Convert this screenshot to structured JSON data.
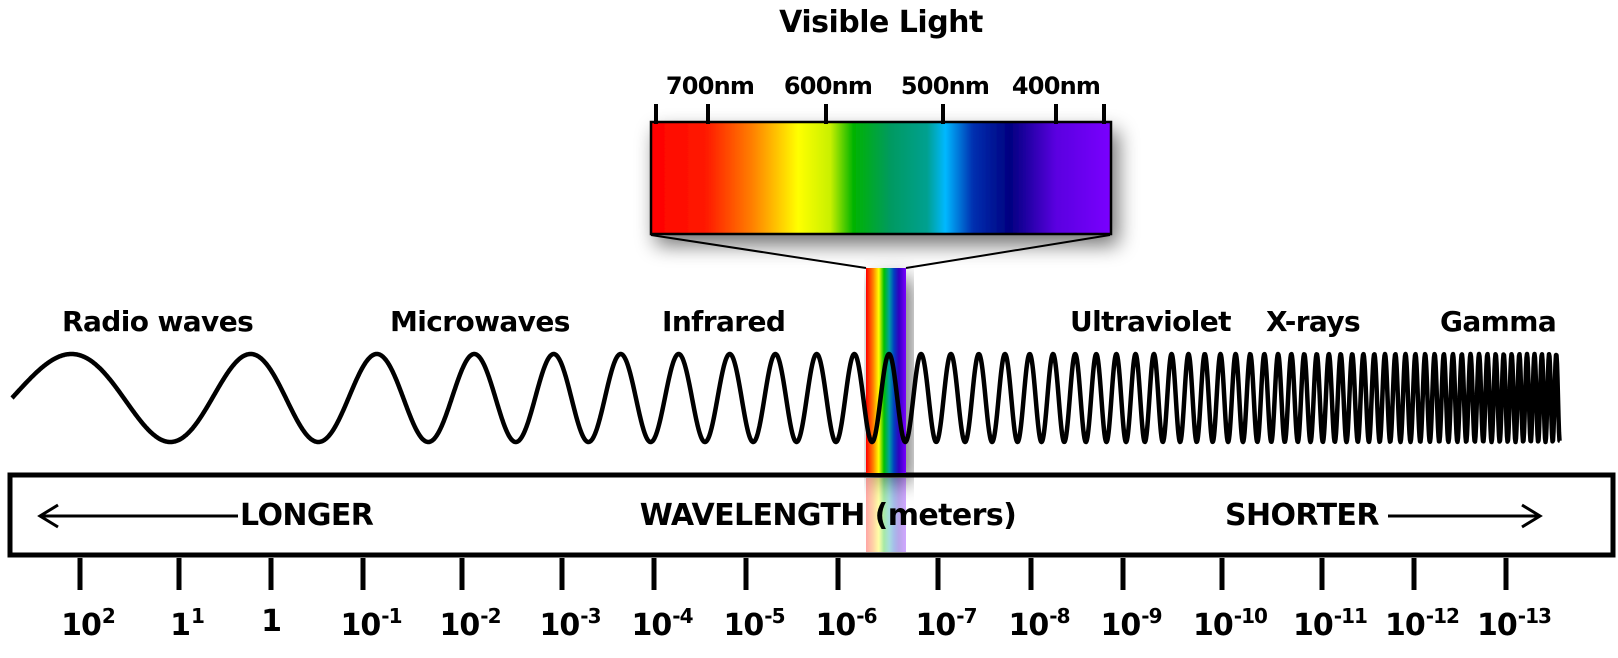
{
  "title": "Visible Light",
  "visible_ticks": [
    "700nm",
    "600nm",
    "500nm",
    "400nm"
  ],
  "bands": [
    "Radio waves",
    "Microwaves",
    "Infrared",
    "Ultraviolet",
    "X-rays",
    "Gamma"
  ],
  "scale": {
    "longer": "LONGER",
    "axis": "WAVELENGTH (meters)",
    "shorter": "SHORTER"
  },
  "wavelength_ticks": [
    {
      "base": "10",
      "exp": "2"
    },
    {
      "base": "1",
      "exp": "1"
    },
    {
      "base": "1",
      "exp": ""
    },
    {
      "base": "10",
      "exp": "-1"
    },
    {
      "base": "10",
      "exp": "-2"
    },
    {
      "base": "10",
      "exp": "-3"
    },
    {
      "base": "10",
      "exp": "-4"
    },
    {
      "base": "10",
      "exp": "-5"
    },
    {
      "base": "10",
      "exp": "-6"
    },
    {
      "base": "10",
      "exp": "-7"
    },
    {
      "base": "10",
      "exp": "-8"
    },
    {
      "base": "10",
      "exp": "-9"
    },
    {
      "base": "10",
      "exp": "-10"
    },
    {
      "base": "10",
      "exp": "-11"
    },
    {
      "base": "10",
      "exp": "-12"
    },
    {
      "base": "10",
      "exp": "-13"
    }
  ],
  "spectrum_colors": [
    "#ff0000",
    "#ff8000",
    "#ffff00",
    "#00c000",
    "#00a0a0",
    "#00bfff",
    "#000080",
    "#7a00ff"
  ]
}
